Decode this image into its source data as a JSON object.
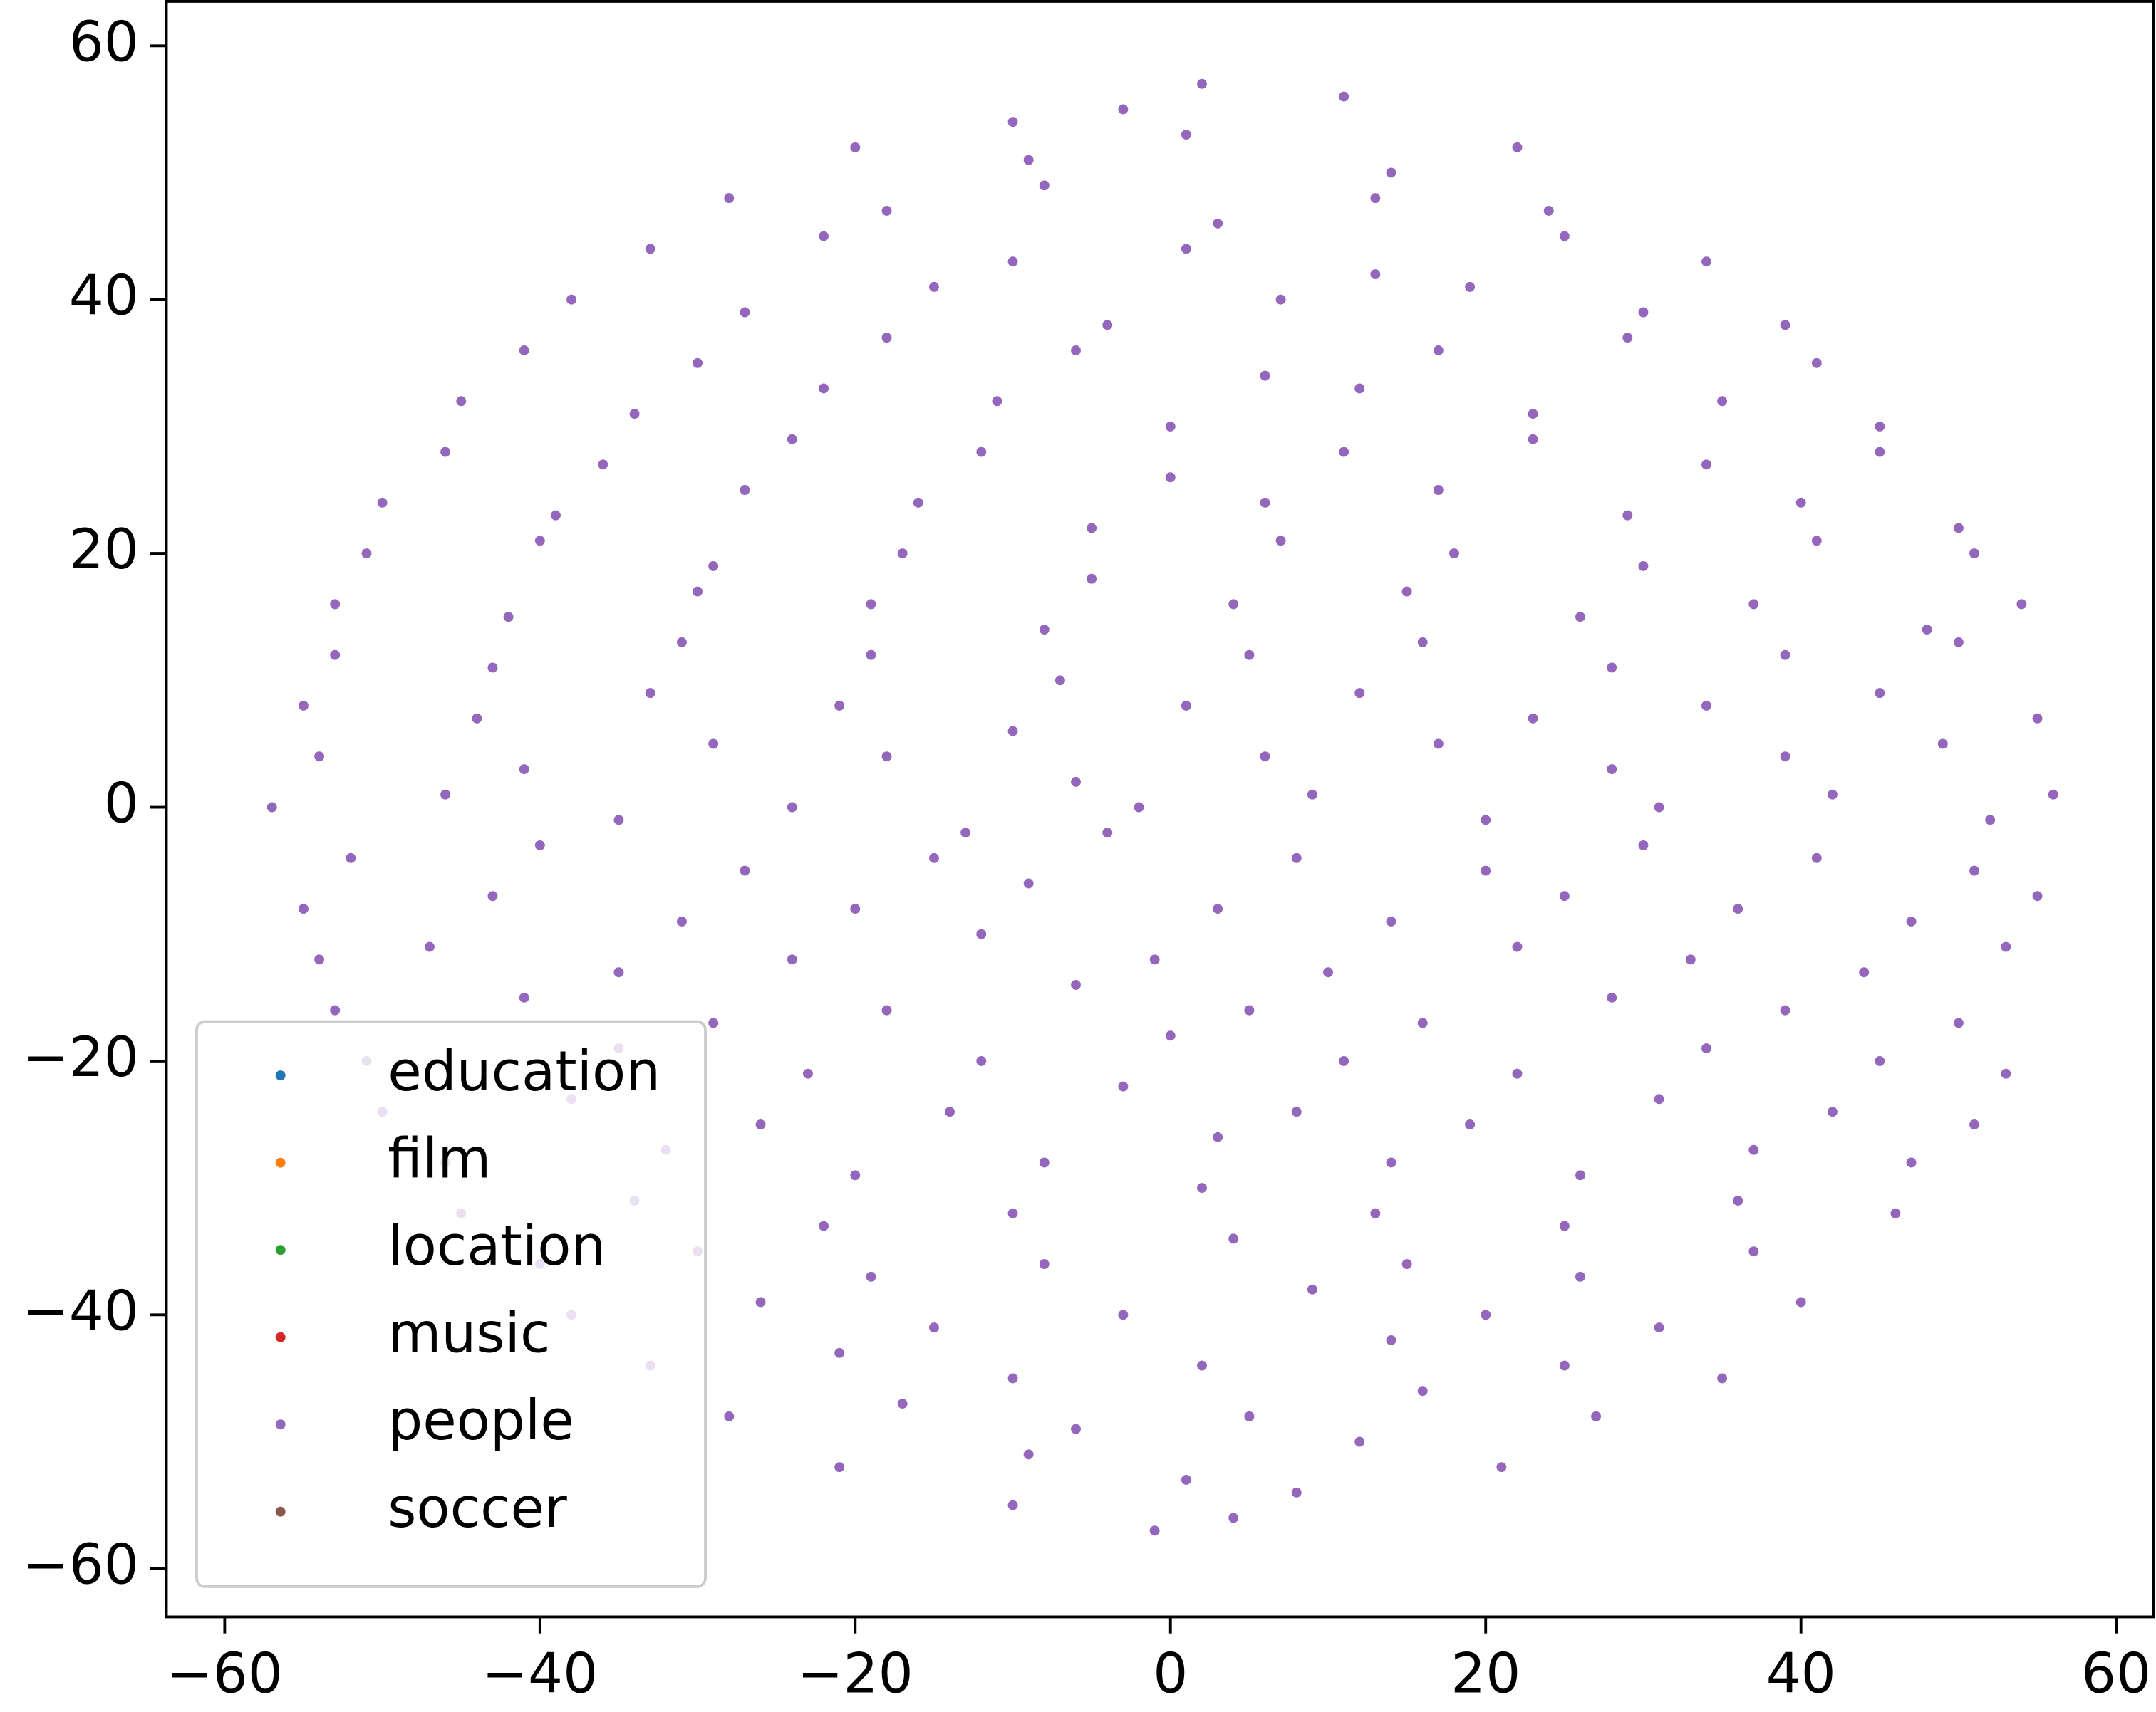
{
  "chart_data": {
    "type": "scatter",
    "xlim": [
      -63.7,
      62.35
    ],
    "ylim": [
      -63.8,
      63.5
    ],
    "xticks": [
      {
        "value": -60,
        "label": "−60"
      },
      {
        "value": -40,
        "label": "−40"
      },
      {
        "value": -20,
        "label": "−20"
      },
      0,
      20,
      40,
      60
    ],
    "yticks": [
      {
        "value": -60,
        "label": "−60"
      },
      {
        "value": -40,
        "label": "−40"
      },
      {
        "value": -20,
        "label": "−20"
      },
      0,
      20,
      40,
      60
    ],
    "legend": "lower left",
    "series": [
      {
        "name": "education",
        "color": "#1f77b4",
        "x": [],
        "values": []
      },
      {
        "name": "film",
        "color": "#ff7f0e",
        "x": [],
        "values": []
      },
      {
        "name": "location",
        "color": "#2ca02c",
        "x": [],
        "values": []
      },
      {
        "name": "music",
        "color": "#d62728",
        "x": [],
        "values": []
      },
      {
        "name": "people",
        "color": "#9467bd",
        "x": [
          -10,
          2,
          11,
          -3,
          -20,
          -9,
          1,
          14,
          22,
          -28,
          -18,
          -8,
          3,
          13,
          24,
          -33,
          -22,
          -10,
          1,
          13,
          25,
          34,
          -38,
          -27,
          -15,
          -4,
          7,
          19,
          30,
          39,
          -41,
          -30,
          -18,
          -6,
          6,
          17,
          29,
          41,
          -45,
          -34,
          -22,
          -11,
          0,
          12,
          23,
          35,
          45,
          -46,
          -36,
          -24,
          -12,
          0,
          11,
          23,
          34,
          45,
          -50,
          -39,
          -27,
          -16,
          -5,
          6,
          17,
          29,
          40,
          50,
          -51,
          -40,
          -29,
          -17,
          -5,
          7,
          18,
          30,
          41,
          51,
          -53,
          -42,
          -30,
          -19,
          -8,
          4,
          15,
          26,
          37,
          48,
          54,
          -53,
          -43,
          -31,
          -19,
          -7,
          5,
          16,
          28,
          39,
          50,
          -55,
          -44,
          -33,
          -21,
          -10,
          1,
          12,
          23,
          34,
          45,
          55,
          -54,
          -41,
          -29,
          -18,
          -6,
          6,
          17,
          28,
          39,
          49,
          -57,
          -46,
          -35,
          -24,
          -13,
          -2,
          9,
          20,
          31,
          42,
          52,
          56,
          -52,
          -40,
          -27,
          -15,
          -4,
          8,
          20,
          30,
          41,
          51,
          -55,
          -43,
          -31,
          -20,
          -9,
          3,
          14,
          25,
          36,
          47,
          55,
          -54,
          -47,
          -35,
          -24,
          -12,
          -1,
          10,
          22,
          33,
          44,
          53,
          -53,
          -41,
          -29,
          -18,
          -6,
          5,
          16,
          28,
          39,
          50,
          -51,
          -35,
          -23,
          -12,
          0,
          11,
          22,
          34,
          45,
          53,
          -50,
          -38,
          -26,
          -14,
          -3,
          8,
          19,
          31,
          42,
          51,
          -46,
          -32,
          -20,
          -8,
          3,
          14,
          26,
          37,
          47,
          -45,
          -34,
          -22,
          -10,
          2,
          13,
          25,
          36,
          46,
          -40,
          -30,
          -19,
          -8,
          4,
          15,
          26,
          37,
          -38,
          -26,
          -15,
          -3,
          9,
          20,
          31,
          40,
          -33,
          -21,
          -10,
          2,
          14,
          25,
          35,
          -28,
          -17,
          -6,
          5,
          16,
          27,
          -21,
          -9,
          1,
          12,
          21,
          -10,
          -1,
          8,
          4
        ],
        "values": [
          54,
          57,
          56,
          55,
          52,
          51,
          53,
          50,
          52,
          48,
          47,
          49,
          46,
          48,
          47,
          44,
          45,
          43,
          44,
          42,
          45,
          43,
          40,
          39,
          41,
          38,
          40,
          41,
          39,
          38,
          36,
          35,
          37,
          36,
          34,
          36,
          37,
          35,
          32,
          31,
          33,
          32,
          30,
          33,
          31,
          32,
          30,
          28,
          27,
          29,
          28,
          26,
          28,
          29,
          27,
          28,
          24,
          23,
          25,
          24,
          22,
          24,
          25,
          23,
          24,
          22,
          20,
          21,
          19,
          20,
          18,
          21,
          20,
          19,
          21,
          20,
          16,
          15,
          17,
          16,
          14,
          16,
          17,
          15,
          16,
          14,
          16,
          12,
          11,
          13,
          12,
          10,
          12,
          13,
          11,
          12,
          13,
          8,
          7,
          9,
          8,
          6,
          8,
          9,
          7,
          8,
          9,
          7,
          4,
          3,
          5,
          4,
          2,
          4,
          5,
          3,
          4,
          5,
          0,
          1,
          -1,
          0,
          -2,
          0,
          1,
          -1,
          0,
          1,
          -1,
          1,
          -4,
          -3,
          -5,
          -4,
          -2,
          -4,
          -5,
          -3,
          -4,
          -5,
          -8,
          -7,
          -9,
          -8,
          -6,
          -8,
          -9,
          -7,
          -8,
          -9,
          -7,
          -12,
          -11,
          -13,
          -12,
          -10,
          -12,
          -13,
          -11,
          -12,
          -13,
          -11,
          -16,
          -15,
          -17,
          -16,
          -14,
          -16,
          -17,
          -15,
          -16,
          -17,
          -20,
          -19,
          -21,
          -20,
          -18,
          -20,
          -21,
          -19,
          -20,
          -21,
          -24,
          -23,
          -25,
          -24,
          -22,
          -24,
          -25,
          -23,
          -24,
          -25,
          -28,
          -27,
          -29,
          -28,
          -26,
          -28,
          -29,
          -27,
          -28,
          -32,
          -31,
          -33,
          -32,
          -30,
          -32,
          -33,
          -31,
          -32,
          -36,
          -35,
          -37,
          -36,
          -34,
          -36,
          -37,
          -35,
          -40,
          -39,
          -41,
          -40,
          -38,
          -40,
          -41,
          -39,
          -44,
          -43,
          -45,
          -44,
          -42,
          -44,
          -45,
          -48,
          -47,
          -49,
          -48,
          -46,
          -48,
          -52,
          -51,
          -53,
          -50,
          -52,
          -55,
          -57,
          -54,
          -56
        ]
      },
      {
        "name": "soccer",
        "color": "#8c564b",
        "x": [],
        "values": []
      }
    ]
  }
}
